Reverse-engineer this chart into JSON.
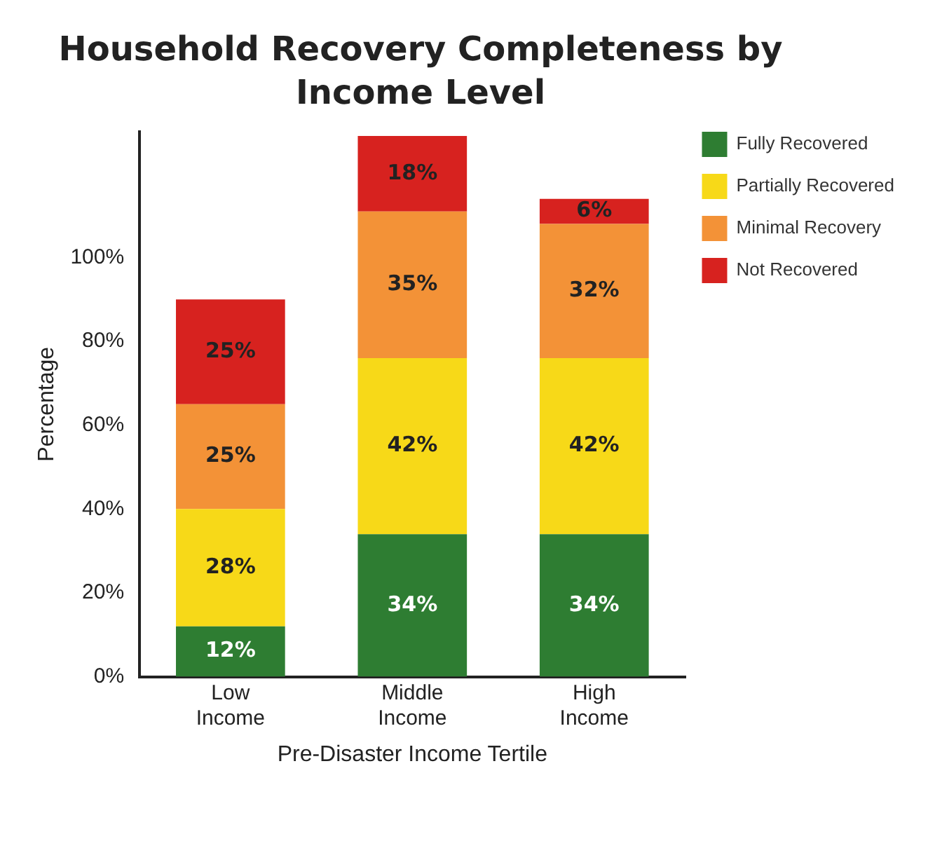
{
  "chart_data": {
    "type": "bar",
    "title": "Household Recovery Completeness by Income Level",
    "xlabel": "Pre-Disaster Income Tertile",
    "ylabel": "Percentage",
    "categories": [
      "Low Income",
      "Middle Income",
      "High Income"
    ],
    "stacked": true,
    "grid": false,
    "legend": "right",
    "ylim": [
      0,
      130
    ],
    "yticks": [
      {
        "value": 0,
        "label": "0%"
      },
      {
        "value": 20,
        "label": "20%"
      },
      {
        "value": 40,
        "label": "40%"
      },
      {
        "value": 60,
        "label": "60%"
      },
      {
        "value": 80,
        "label": "80%"
      },
      {
        "value": 100,
        "label": "100%"
      }
    ],
    "series": [
      {
        "name": "Fully Recovered",
        "color": "#2e7d32",
        "values": [
          12,
          34,
          34
        ],
        "value_labels": [
          "12%",
          "34%",
          "34%"
        ]
      },
      {
        "name": "Partially Recovered",
        "color": "#f7d918",
        "values": [
          28,
          42,
          42
        ],
        "value_labels": [
          "28%",
          "42%",
          "42%"
        ]
      },
      {
        "name": "Minimal Recovery",
        "color": "#f39237",
        "values": [
          25,
          35,
          32
        ],
        "value_labels": [
          "25%",
          "35%",
          "32%"
        ]
      },
      {
        "name": "Not Recovered",
        "color": "#d7221f",
        "values": [
          25,
          18,
          6
        ],
        "value_labels": [
          "25%",
          "18%",
          "6%"
        ]
      }
    ]
  }
}
